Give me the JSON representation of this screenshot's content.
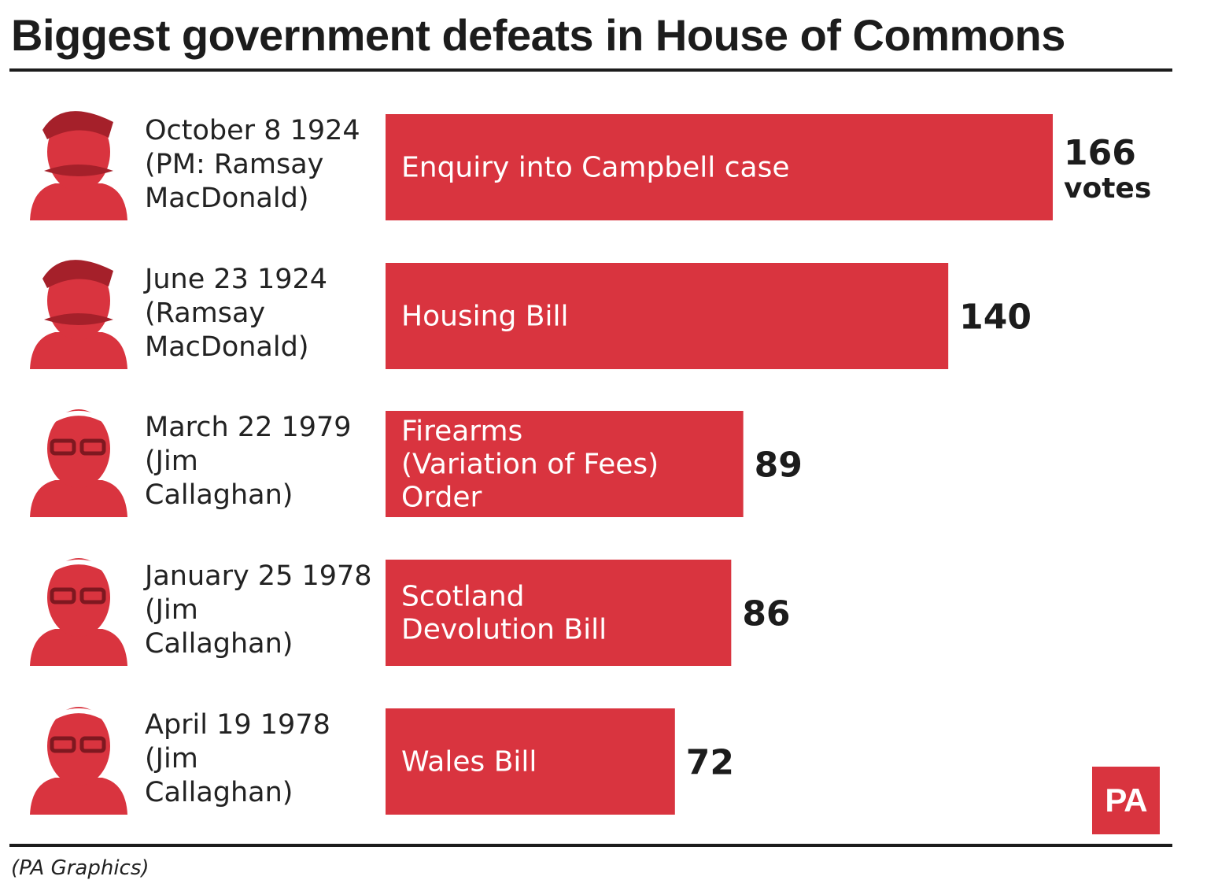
{
  "title": "Biggest government defeats in House of Commons",
  "credit": "(PA Graphics)",
  "logo": "PA",
  "colors": {
    "bar": "#d9343f",
    "portrait": "#d9343f",
    "text": "#1c1c1c"
  },
  "chart_data": {
    "type": "bar",
    "orientation": "horizontal",
    "unit_label": "votes",
    "categories": [
      "Enquiry into Campbell case",
      "Housing Bill",
      "Firearms (Variation of Fees) Order",
      "Scotland Devolution Bill",
      "Wales Bill"
    ],
    "values": [
      166,
      140,
      89,
      86,
      72
    ],
    "rows": [
      {
        "date": "October 8 1924",
        "pm_lines": [
          "(PM: Ramsay",
          "MacDonald)"
        ],
        "bar_lines": [
          "Enquiry into Campbell case"
        ],
        "value_text": "166",
        "portrait": "ramsay-macdonald-portrait-icon"
      },
      {
        "date": "June 23 1924",
        "pm_lines": [
          "(Ramsay",
          "MacDonald)"
        ],
        "bar_lines": [
          "Housing Bill"
        ],
        "value_text": "140",
        "portrait": "ramsay-macdonald-portrait-icon"
      },
      {
        "date": "March 22 1979",
        "pm_lines": [
          "(Jim",
          "Callaghan)"
        ],
        "bar_lines": [
          "Firearms",
          "(Variation of Fees)",
          "Order"
        ],
        "value_text": "89",
        "portrait": "jim-callaghan-portrait-icon"
      },
      {
        "date": "January 25 1978",
        "pm_lines": [
          "(Jim",
          "Callaghan)"
        ],
        "bar_lines": [
          "Scotland",
          "Devolution Bill"
        ],
        "value_text": "86",
        "portrait": "jim-callaghan-portrait-icon"
      },
      {
        "date": "April 19 1978",
        "pm_lines": [
          "(Jim",
          "Callaghan)"
        ],
        "bar_lines": [
          "Wales Bill"
        ],
        "value_text": "72",
        "portrait": "jim-callaghan-portrait-icon"
      }
    ]
  }
}
